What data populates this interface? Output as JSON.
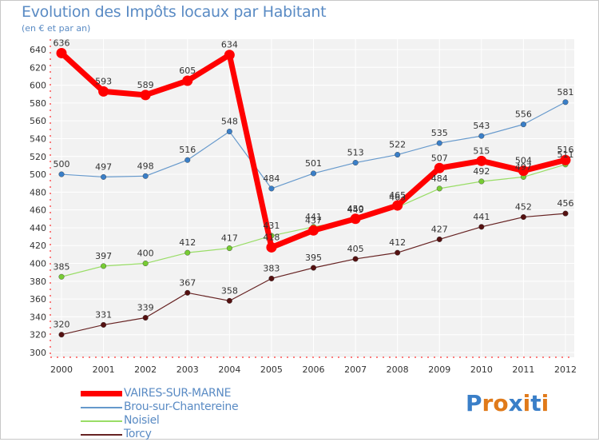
{
  "chart_data": {
    "type": "line",
    "title": "Evolution des Impôts locaux par Habitant",
    "subtitle": "(en € et par an)",
    "x": [
      "2000",
      "2001",
      "2002",
      "2003",
      "2004",
      "2005",
      "2006",
      "2007",
      "2008",
      "2009",
      "2010",
      "2011",
      "2012"
    ],
    "ylim": [
      300,
      640
    ],
    "yticks": [
      300,
      320,
      340,
      360,
      380,
      400,
      420,
      440,
      460,
      480,
      500,
      520,
      540,
      560,
      580,
      600,
      620,
      640
    ],
    "grid": true,
    "legend_position": "bottom-left",
    "series": [
      {
        "name": "VAIRES-SUR-MARNE",
        "color": "#ff0000",
        "values": [
          636,
          593,
          589,
          605,
          634,
          418,
          437,
          450,
          465,
          507,
          515,
          504,
          516
        ],
        "labels": [
          "636",
          "593",
          "589",
          "605",
          "634",
          "418",
          "437",
          "450",
          "465",
          "507",
          "515",
          "504",
          "516"
        ]
      },
      {
        "name": "Brou-sur-Chantereine",
        "color": "#6699cc",
        "values": [
          500,
          497,
          498,
          516,
          548,
          484,
          501,
          513,
          522,
          535,
          543,
          556,
          581
        ],
        "labels": [
          "500",
          "497",
          "498",
          "516",
          "548",
          "484",
          "501",
          "513",
          "522",
          "535",
          "543",
          "556",
          "581"
        ]
      },
      {
        "name": "Noisiel",
        "color": "#99dd66",
        "values": [
          385,
          397,
          400,
          412,
          417,
          431,
          441,
          449,
          463,
          484,
          492,
          497,
          511
        ],
        "labels": [
          "385",
          "397",
          "400",
          "412",
          "417",
          "431",
          "441",
          "449",
          "463",
          "484",
          "492",
          "497",
          "511"
        ]
      },
      {
        "name": "Torcy",
        "color": "#662222",
        "values": [
          320,
          331,
          339,
          367,
          358,
          383,
          395,
          405,
          412,
          427,
          441,
          452,
          456
        ],
        "labels": [
          "320",
          "331",
          "339",
          "367",
          "358",
          "383",
          "395",
          "405",
          "412",
          "427",
          "441",
          "452",
          "456"
        ]
      }
    ]
  },
  "logo": {
    "text": "Proxiti",
    "letters": [
      "P",
      "r",
      "o",
      "x",
      "i",
      "t",
      "i"
    ],
    "colors": [
      "#3a7fc8",
      "#e07a1a",
      "#e07a1a",
      "#3a7fc8",
      "#e07a1a",
      "#3a7fc8",
      "#e07a1a"
    ]
  }
}
